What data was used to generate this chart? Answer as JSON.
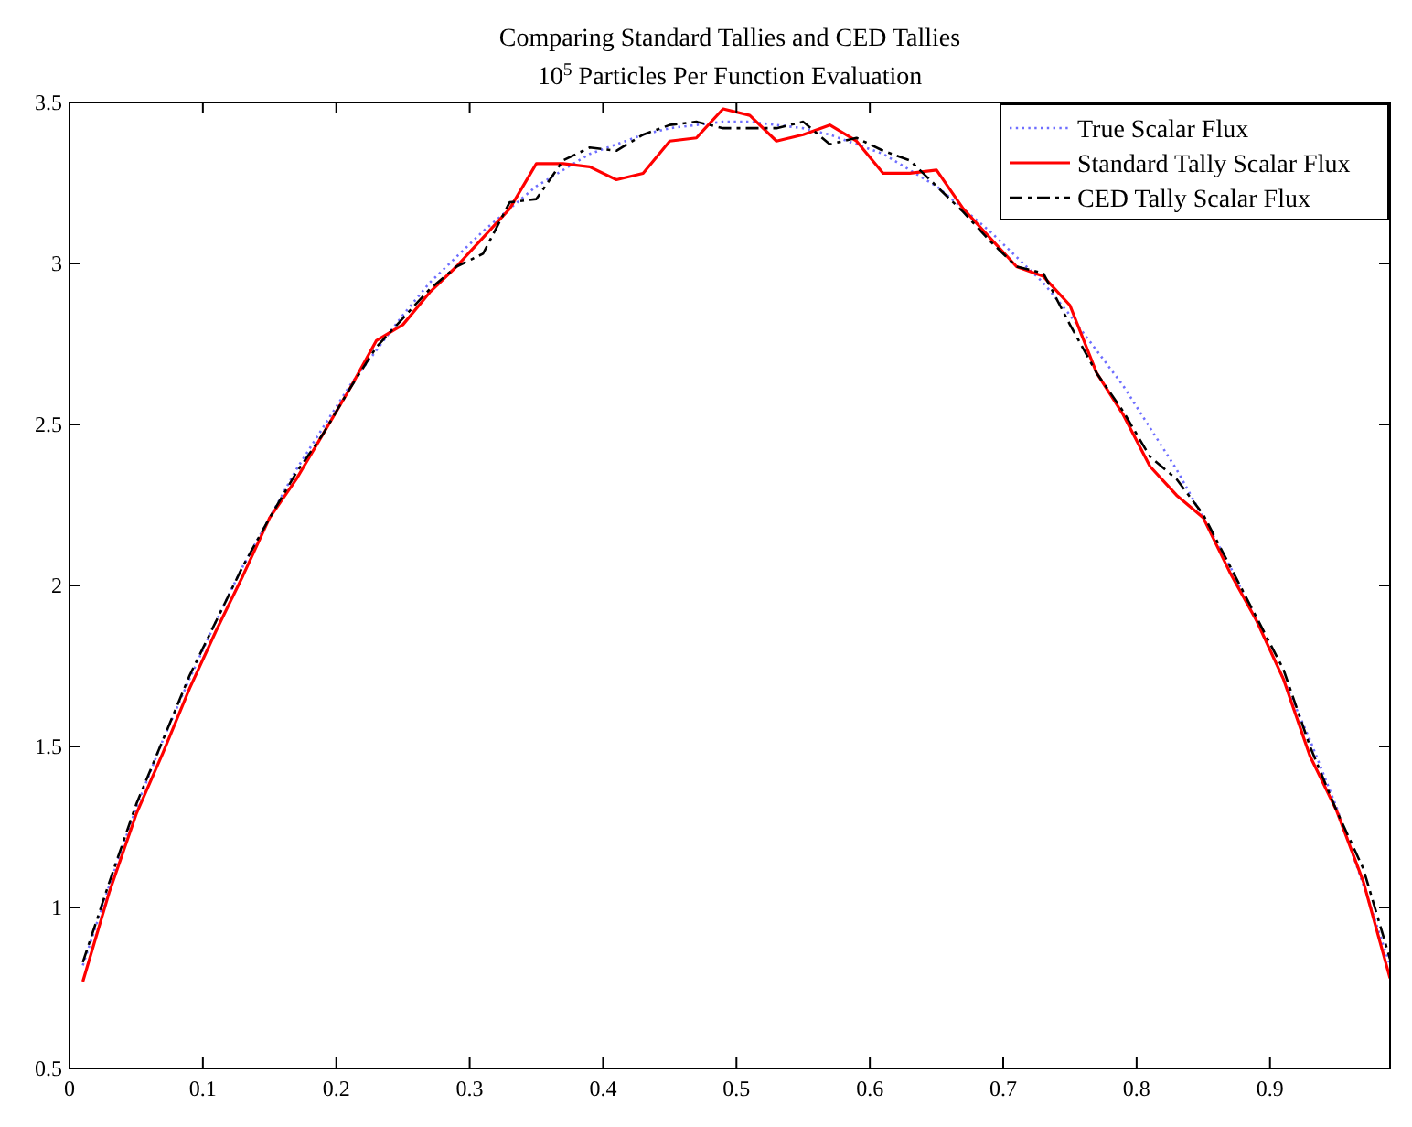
{
  "chart_data": {
    "type": "line",
    "title": "Comparing Standard Tallies and CED Tallies",
    "subtitle": "10$^{5}$ Particles Per Function Evaluation",
    "x": [
      0.01,
      0.03,
      0.05,
      0.07,
      0.09,
      0.11,
      0.13,
      0.15,
      0.17,
      0.19,
      0.21,
      0.23,
      0.25,
      0.27,
      0.29,
      0.31,
      0.33,
      0.35,
      0.37,
      0.39,
      0.41,
      0.43,
      0.45,
      0.47,
      0.49,
      0.51,
      0.53,
      0.55,
      0.57,
      0.59,
      0.61,
      0.63,
      0.65,
      0.67,
      0.69,
      0.71,
      0.73,
      0.75,
      0.77,
      0.79,
      0.81,
      0.83,
      0.85,
      0.87,
      0.89,
      0.91,
      0.93,
      0.95,
      0.97,
      0.99
    ],
    "series": [
      {
        "name": "True Scalar Flux",
        "color": "#6e6eff",
        "line_style": "dotted",
        "values": [
          0.82,
          1.07,
          1.31,
          1.52,
          1.71,
          1.89,
          2.06,
          2.21,
          2.36,
          2.49,
          2.62,
          2.73,
          2.84,
          2.94,
          3.02,
          3.1,
          3.17,
          3.24,
          3.29,
          3.34,
          3.37,
          3.4,
          3.42,
          3.43,
          3.44,
          3.44,
          3.43,
          3.42,
          3.4,
          3.37,
          3.34,
          3.29,
          3.24,
          3.17,
          3.1,
          3.02,
          2.94,
          2.84,
          2.73,
          2.62,
          2.49,
          2.36,
          2.21,
          2.06,
          1.89,
          1.71,
          1.52,
          1.31,
          1.07,
          0.82
        ]
      },
      {
        "name": "Standard Tally Scalar Flux",
        "color": "#ff0000",
        "line_style": "solid",
        "values": [
          0.77,
          1.05,
          1.29,
          1.48,
          1.68,
          1.86,
          2.03,
          2.21,
          2.33,
          2.47,
          2.61,
          2.76,
          2.81,
          2.91,
          2.99,
          3.08,
          3.17,
          3.31,
          3.31,
          3.3,
          3.26,
          3.28,
          3.38,
          3.39,
          3.48,
          3.46,
          3.38,
          3.4,
          3.43,
          3.38,
          3.28,
          3.28,
          3.29,
          3.17,
          3.08,
          2.99,
          2.96,
          2.87,
          2.66,
          2.53,
          2.37,
          2.28,
          2.21,
          2.04,
          1.89,
          1.71,
          1.47,
          1.3,
          1.08,
          0.78
        ]
      },
      {
        "name": "CED Tally Scalar Flux",
        "color": "#000000",
        "line_style": "dashed",
        "values": [
          0.83,
          1.08,
          1.32,
          1.52,
          1.72,
          1.89,
          2.06,
          2.21,
          2.35,
          2.47,
          2.61,
          2.74,
          2.83,
          2.92,
          2.99,
          3.03,
          3.19,
          3.2,
          3.32,
          3.36,
          3.35,
          3.4,
          3.43,
          3.44,
          3.42,
          3.42,
          3.42,
          3.44,
          3.37,
          3.39,
          3.35,
          3.32,
          3.24,
          3.16,
          3.07,
          2.99,
          2.97,
          2.81,
          2.66,
          2.54,
          2.4,
          2.33,
          2.22,
          2.06,
          1.9,
          1.74,
          1.5,
          1.3,
          1.12,
          0.84
        ]
      }
    ],
    "xlim": [
      0,
      0.99
    ],
    "xticks": [
      0,
      0.1,
      0.2,
      0.3,
      0.4,
      0.5,
      0.6,
      0.7,
      0.8,
      0.9
    ],
    "ylim": [
      0.5,
      3.5
    ],
    "yticks": [
      0.5,
      1,
      1.5,
      2,
      2.5,
      3,
      3.5
    ],
    "legend": "top right",
    "grid": false
  }
}
